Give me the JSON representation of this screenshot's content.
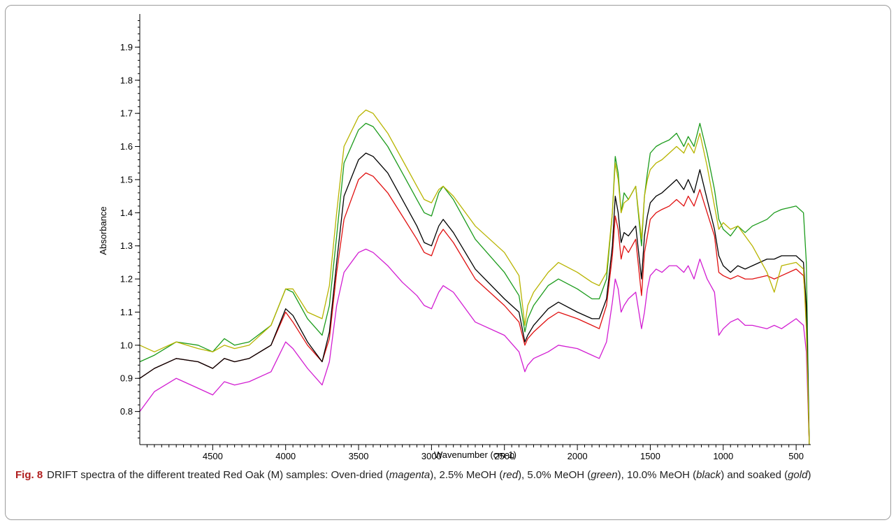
{
  "chart_data": {
    "type": "line",
    "title": "",
    "xlabel": "Wavenumber (cm-1)",
    "ylabel": "Absorbance",
    "xlim": [
      5000,
      400
    ],
    "ylim": [
      0.7,
      2.0
    ],
    "x_reversed": true,
    "x_ticks": [
      4500,
      4000,
      3500,
      3000,
      2500,
      2000,
      1500,
      1000,
      500
    ],
    "y_ticks": [
      0.8,
      0.9,
      1.0,
      1.1,
      1.2,
      1.3,
      1.4,
      1.5,
      1.6,
      1.7,
      1.8,
      1.9
    ],
    "grid": false,
    "legend": "none",
    "x": [
      5000,
      4900,
      4750,
      4600,
      4500,
      4420,
      4350,
      4250,
      4100,
      4000,
      3950,
      3850,
      3750,
      3700,
      3650,
      3600,
      3500,
      3450,
      3400,
      3300,
      3200,
      3100,
      3050,
      3000,
      2950,
      2920,
      2850,
      2700,
      2500,
      2400,
      2360,
      2340,
      2300,
      2200,
      2130,
      2000,
      1900,
      1850,
      1800,
      1760,
      1740,
      1720,
      1700,
      1680,
      1650,
      1600,
      1560,
      1540,
      1520,
      1500,
      1460,
      1420,
      1370,
      1320,
      1270,
      1240,
      1200,
      1160,
      1110,
      1060,
      1030,
      1000,
      950,
      900,
      850,
      800,
      700,
      650,
      600,
      500,
      450,
      430,
      410
    ],
    "series": [
      {
        "color": "#d21ed2",
        "values": [
          0.8,
          0.86,
          0.9,
          0.87,
          0.85,
          0.89,
          0.88,
          0.89,
          0.92,
          1.01,
          0.99,
          0.93,
          0.88,
          0.95,
          1.12,
          1.22,
          1.28,
          1.29,
          1.28,
          1.24,
          1.19,
          1.15,
          1.12,
          1.11,
          1.16,
          1.18,
          1.16,
          1.07,
          1.03,
          0.98,
          0.92,
          0.94,
          0.96,
          0.98,
          1.0,
          0.99,
          0.97,
          0.96,
          1.01,
          1.13,
          1.2,
          1.17,
          1.1,
          1.12,
          1.14,
          1.16,
          1.05,
          1.1,
          1.17,
          1.21,
          1.23,
          1.22,
          1.24,
          1.24,
          1.22,
          1.24,
          1.2,
          1.26,
          1.2,
          1.16,
          1.03,
          1.05,
          1.07,
          1.08,
          1.06,
          1.06,
          1.05,
          1.06,
          1.05,
          1.08,
          1.06,
          0.98,
          0.7
        ]
      },
      {
        "color": "#e01010",
        "values": [
          0.9,
          0.93,
          0.96,
          0.95,
          0.93,
          0.96,
          0.95,
          0.96,
          1.0,
          1.1,
          1.07,
          1.0,
          0.95,
          1.02,
          1.22,
          1.38,
          1.5,
          1.52,
          1.51,
          1.46,
          1.39,
          1.32,
          1.28,
          1.27,
          1.33,
          1.35,
          1.31,
          1.2,
          1.12,
          1.07,
          1.0,
          1.02,
          1.04,
          1.08,
          1.1,
          1.08,
          1.06,
          1.05,
          1.12,
          1.27,
          1.39,
          1.35,
          1.26,
          1.3,
          1.28,
          1.32,
          1.15,
          1.28,
          1.33,
          1.38,
          1.4,
          1.41,
          1.42,
          1.44,
          1.42,
          1.45,
          1.42,
          1.47,
          1.4,
          1.33,
          1.22,
          1.21,
          1.2,
          1.21,
          1.2,
          1.2,
          1.21,
          1.2,
          1.21,
          1.23,
          1.21,
          1.1,
          0.7
        ]
      },
      {
        "color": "#1b9b1b",
        "values": [
          0.95,
          0.97,
          1.01,
          1.0,
          0.98,
          1.02,
          1.0,
          1.01,
          1.06,
          1.17,
          1.16,
          1.08,
          1.03,
          1.12,
          1.33,
          1.55,
          1.65,
          1.67,
          1.66,
          1.6,
          1.52,
          1.44,
          1.4,
          1.39,
          1.46,
          1.48,
          1.44,
          1.32,
          1.22,
          1.15,
          1.04,
          1.08,
          1.12,
          1.18,
          1.2,
          1.17,
          1.14,
          1.14,
          1.2,
          1.4,
          1.57,
          1.52,
          1.4,
          1.46,
          1.44,
          1.48,
          1.3,
          1.45,
          1.52,
          1.58,
          1.6,
          1.61,
          1.62,
          1.64,
          1.6,
          1.63,
          1.6,
          1.67,
          1.58,
          1.47,
          1.38,
          1.35,
          1.33,
          1.36,
          1.34,
          1.36,
          1.38,
          1.4,
          1.41,
          1.42,
          1.4,
          1.25,
          0.7
        ]
      },
      {
        "color": "#000000",
        "values": [
          0.9,
          0.93,
          0.96,
          0.95,
          0.93,
          0.96,
          0.95,
          0.96,
          1.0,
          1.11,
          1.09,
          1.01,
          0.95,
          1.04,
          1.25,
          1.45,
          1.56,
          1.58,
          1.57,
          1.52,
          1.44,
          1.36,
          1.31,
          1.3,
          1.36,
          1.38,
          1.34,
          1.23,
          1.14,
          1.1,
          1.01,
          1.03,
          1.06,
          1.11,
          1.13,
          1.1,
          1.08,
          1.08,
          1.14,
          1.3,
          1.45,
          1.4,
          1.31,
          1.34,
          1.33,
          1.36,
          1.2,
          1.33,
          1.39,
          1.43,
          1.45,
          1.46,
          1.48,
          1.5,
          1.47,
          1.5,
          1.46,
          1.53,
          1.44,
          1.35,
          1.27,
          1.24,
          1.22,
          1.24,
          1.23,
          1.24,
          1.26,
          1.26,
          1.27,
          1.27,
          1.25,
          1.12,
          0.7
        ]
      },
      {
        "color": "#b8b400",
        "values": [
          1.0,
          0.98,
          1.01,
          0.99,
          0.98,
          1.0,
          0.99,
          1.0,
          1.06,
          1.17,
          1.17,
          1.1,
          1.08,
          1.18,
          1.4,
          1.6,
          1.69,
          1.71,
          1.7,
          1.64,
          1.56,
          1.48,
          1.44,
          1.43,
          1.47,
          1.48,
          1.45,
          1.36,
          1.28,
          1.21,
          1.06,
          1.12,
          1.16,
          1.22,
          1.25,
          1.22,
          1.19,
          1.18,
          1.22,
          1.4,
          1.55,
          1.5,
          1.4,
          1.43,
          1.44,
          1.48,
          1.32,
          1.45,
          1.5,
          1.53,
          1.55,
          1.56,
          1.58,
          1.6,
          1.58,
          1.61,
          1.58,
          1.64,
          1.54,
          1.42,
          1.35,
          1.37,
          1.35,
          1.36,
          1.33,
          1.3,
          1.22,
          1.16,
          1.24,
          1.25,
          1.23,
          1.05,
          0.7
        ]
      }
    ]
  },
  "caption": {
    "label": "Fig. 8",
    "text_1": "DRIFT spectra of the different treated Red Oak (M) samples: Oven-dried (",
    "c1": "magenta",
    "text_2": "), 2.5% MeOH (",
    "c2": "red",
    "text_3": "), 5.0% MeOH (",
    "c3": "green",
    "text_4": "), 10.0% MeOH (",
    "c4": "black",
    "text_5": ") and soaked (",
    "c5": "gold",
    "text_6": ")"
  }
}
